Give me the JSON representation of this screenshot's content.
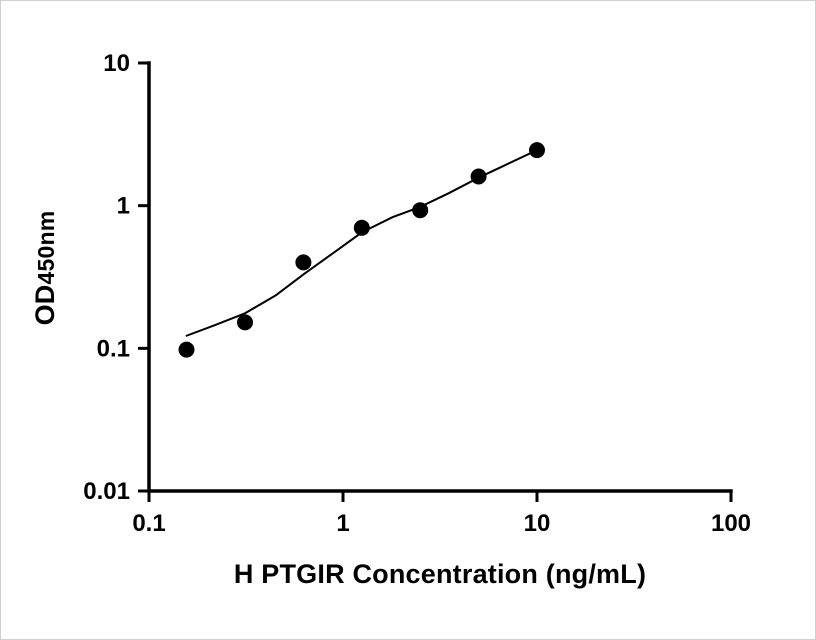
{
  "chart_data": {
    "type": "scatter",
    "title": "",
    "xlabel": "H PTGIR Concentration (ng/mL)",
    "ylabel": "OD450nm",
    "ylabel_main": "OD",
    "ylabel_sub": "450nm",
    "x_scale": "log",
    "y_scale": "log",
    "xlim": [
      0.1,
      100
    ],
    "ylim": [
      0.01,
      10
    ],
    "grid": false,
    "legend": "none",
    "x_ticks": [
      {
        "value": 0.1,
        "label": "0.1"
      },
      {
        "value": 1,
        "label": "1"
      },
      {
        "value": 10,
        "label": "10"
      },
      {
        "value": 100,
        "label": "100"
      }
    ],
    "y_ticks": [
      {
        "value": 0.01,
        "label": "0.01"
      },
      {
        "value": 0.1,
        "label": "0.1"
      },
      {
        "value": 1,
        "label": "1"
      },
      {
        "value": 10,
        "label": "10"
      }
    ],
    "points": [
      {
        "x": 0.156,
        "y": 0.098
      },
      {
        "x": 0.3125,
        "y": 0.152
      },
      {
        "x": 0.625,
        "y": 0.4
      },
      {
        "x": 1.25,
        "y": 0.7
      },
      {
        "x": 2.5,
        "y": 0.93
      },
      {
        "x": 5,
        "y": 1.6
      },
      {
        "x": 10,
        "y": 2.45
      }
    ],
    "fit_curve": [
      [
        0.155,
        0.122
      ],
      [
        0.22,
        0.146
      ],
      [
        0.3125,
        0.176
      ],
      [
        0.45,
        0.235
      ],
      [
        0.625,
        0.33
      ],
      [
        0.9,
        0.47
      ],
      [
        1.25,
        0.65
      ],
      [
        1.8,
        0.83
      ],
      [
        2.5,
        0.98
      ],
      [
        3.5,
        1.22
      ],
      [
        5,
        1.57
      ],
      [
        7,
        1.95
      ],
      [
        10,
        2.45
      ]
    ],
    "colors": {
      "axis": "#000000",
      "point": "#000000",
      "line": "#000000",
      "background": "#ffffff"
    }
  }
}
